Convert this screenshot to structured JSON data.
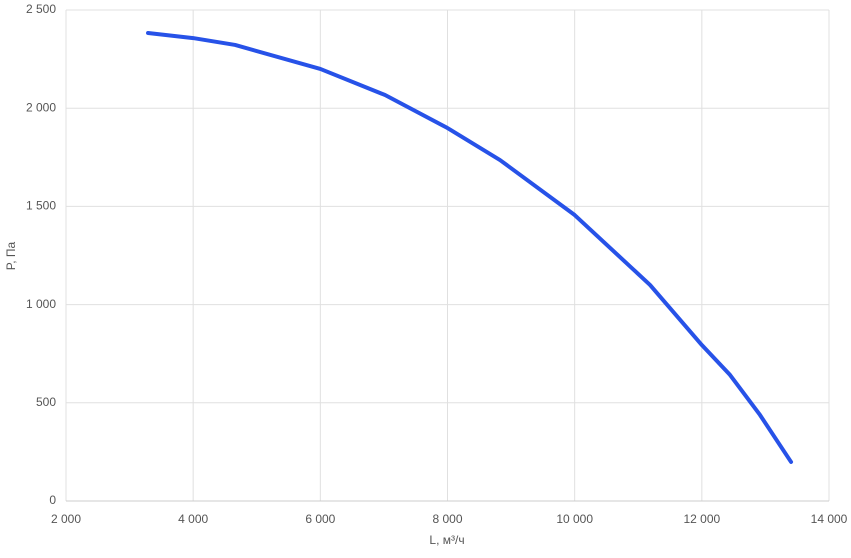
{
  "chart_data": {
    "type": "line",
    "x_label": "L, м³/ч",
    "y_label": "P, Па",
    "x": [
      3290,
      4000,
      4660,
      6000,
      7018,
      8000,
      8826,
      10000,
      11185,
      12000,
      12443,
      12915,
      13403
    ],
    "series": [
      {
        "color": "#2752e8",
        "values": [
          2383,
          2357,
          2322,
          2200,
          2067,
          1899,
          1736,
          1456,
          1100,
          794,
          642,
          438,
          199
        ]
      }
    ],
    "xlim": [
      2000,
      14000
    ],
    "xticks": [
      {
        "value": 2000,
        "label": "2 000"
      },
      {
        "value": 4000,
        "label": "4 000"
      },
      {
        "value": 6000,
        "label": "6 000"
      },
      {
        "value": 8000,
        "label": "8 000"
      },
      {
        "value": 10000,
        "label": "10 000"
      },
      {
        "value": 12000,
        "label": "12 000"
      },
      {
        "value": 14000,
        "label": "14 000"
      }
    ],
    "ylim": [
      0,
      2500
    ],
    "yticks": [
      0,
      500,
      {
        "value": 1000,
        "label": "1 000"
      },
      {
        "value": 1500,
        "label": "1 500"
      },
      {
        "value": 2000,
        "label": "2 000"
      },
      {
        "value": 2500,
        "label": "2 500"
      }
    ],
    "grid": true
  }
}
